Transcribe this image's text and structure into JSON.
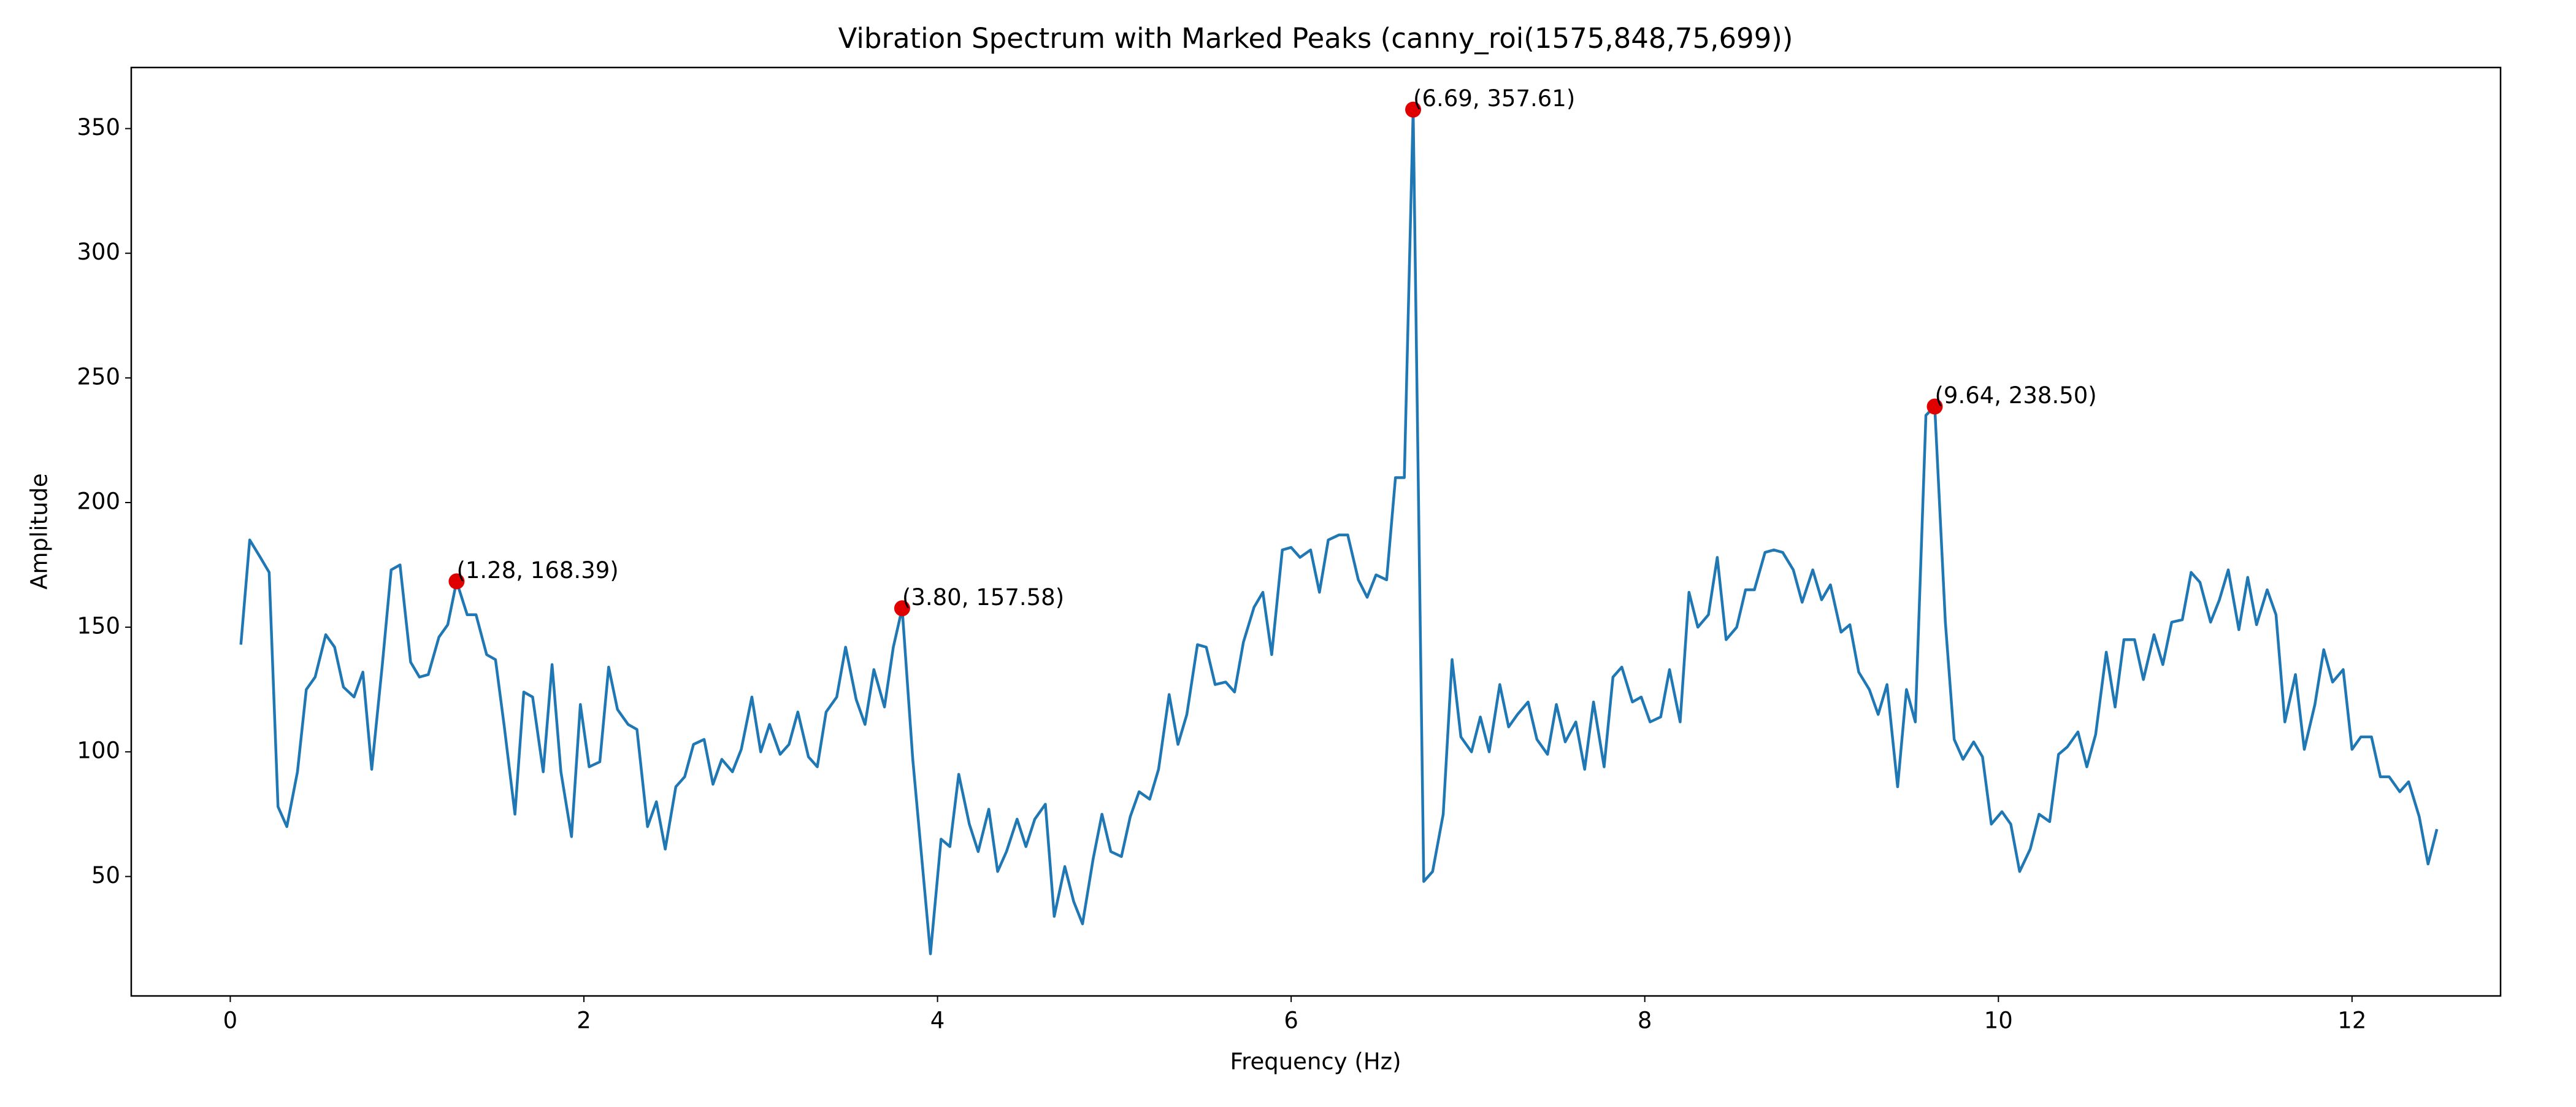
{
  "chart_data": {
    "type": "line",
    "title": "Vibration Spectrum with Marked Peaks (canny_roi(1575,848,75,699))",
    "xlabel": "Frequency (Hz)",
    "ylabel": "Amplitude",
    "xlim": [
      -0.56,
      12.84
    ],
    "ylim": [
      2.1,
      374.5
    ],
    "xticks": [
      0,
      2,
      4,
      6,
      8,
      10,
      12
    ],
    "yticks": [
      50,
      100,
      150,
      200,
      250,
      300,
      350
    ],
    "x": [
      0.06,
      0.11,
      0.17,
      0.22,
      0.27,
      0.32,
      0.38,
      0.43,
      0.48,
      0.54,
      0.59,
      0.64,
      0.7,
      0.75,
      0.8,
      0.86,
      0.91,
      0.96,
      1.02,
      1.07,
      1.12,
      1.18,
      1.23,
      1.28,
      1.34,
      1.39,
      1.45,
      1.5,
      1.55,
      1.61,
      1.66,
      1.71,
      1.77,
      1.82,
      1.87,
      1.93,
      1.98,
      2.03,
      2.09,
      2.14,
      2.19,
      2.25,
      2.3,
      2.36,
      2.41,
      2.46,
      2.52,
      2.57,
      2.62,
      2.68,
      2.73,
      2.78,
      2.84,
      2.89,
      2.95,
      3.0,
      3.05,
      3.11,
      3.16,
      3.21,
      3.27,
      3.32,
      3.37,
      3.43,
      3.48,
      3.54,
      3.59,
      3.64,
      3.7,
      3.75,
      3.8,
      3.86,
      3.91,
      3.96,
      4.02,
      4.07,
      4.12,
      4.18,
      4.23,
      4.29,
      4.34,
      4.39,
      4.45,
      4.5,
      4.55,
      4.61,
      4.66,
      4.72,
      4.77,
      4.82,
      4.88,
      4.93,
      4.98,
      5.04,
      5.09,
      5.14,
      5.2,
      5.25,
      5.31,
      5.36,
      5.41,
      5.47,
      5.52,
      5.57,
      5.63,
      5.68,
      5.73,
      5.79,
      5.84,
      5.89,
      5.95,
      6.0,
      6.05,
      6.11,
      6.16,
      6.21,
      6.27,
      6.32,
      6.38,
      6.43,
      6.48,
      6.54,
      6.59,
      6.64,
      6.69,
      6.75,
      6.8,
      6.86,
      6.91,
      6.96,
      7.02,
      7.07,
      7.12,
      7.18,
      7.23,
      7.28,
      7.34,
      7.39,
      7.45,
      7.5,
      7.55,
      7.61,
      7.66,
      7.71,
      7.77,
      7.82,
      7.87,
      7.93,
      7.98,
      8.03,
      8.09,
      8.14,
      8.2,
      8.25,
      8.3,
      8.36,
      8.41,
      8.46,
      8.52,
      8.57,
      8.62,
      8.68,
      8.73,
      8.78,
      8.84,
      8.89,
      8.95,
      9.0,
      9.05,
      9.11,
      9.16,
      9.21,
      9.27,
      9.32,
      9.37,
      9.43,
      9.48,
      9.53,
      9.59,
      9.64,
      9.7,
      9.75,
      9.8,
      9.86,
      9.91,
      9.96,
      10.02,
      10.07,
      10.12,
      10.18,
      10.23,
      10.29,
      10.34,
      10.39,
      10.45,
      10.5,
      10.55,
      10.61,
      10.66,
      10.71,
      10.77,
      10.82,
      10.88,
      10.93,
      10.98,
      11.04,
      11.09,
      11.14,
      11.2,
      11.25,
      11.3,
      11.36,
      11.41,
      11.46,
      11.52,
      11.57,
      11.62,
      11.68,
      11.73,
      11.79,
      11.84,
      11.89,
      11.95,
      12.0,
      12.05,
      12.11,
      12.16,
      12.21,
      12.27,
      12.32,
      12.38,
      12.43,
      12.48
    ],
    "series": [
      {
        "color": "#1f77b4",
        "values": [
          143,
          185,
          178,
          172,
          78,
          70,
          92,
          125,
          130,
          147,
          142,
          126,
          122,
          132,
          93,
          135,
          173,
          175,
          136,
          130,
          131,
          146,
          151,
          168.39,
          155,
          155,
          139,
          137,
          110,
          75,
          124,
          122,
          92,
          135,
          92,
          66,
          119,
          94,
          96,
          134,
          117,
          111,
          109,
          70,
          80,
          61,
          86,
          90,
          103,
          105,
          87,
          97,
          92,
          101,
          122,
          100,
          111,
          99,
          103,
          116,
          98,
          94,
          116,
          122,
          142,
          121,
          111,
          133,
          118,
          142,
          157.58,
          97,
          58,
          19,
          65,
          62,
          91,
          71,
          60,
          77,
          52,
          60,
          73,
          62,
          73,
          79,
          34,
          54,
          40,
          31,
          57,
          75,
          60,
          58,
          74,
          84,
          81,
          93,
          123,
          103,
          115,
          143,
          142,
          127,
          128,
          124,
          144,
          158,
          164,
          139,
          181,
          182,
          178,
          181,
          164,
          185,
          187,
          187,
          169,
          162,
          171,
          169,
          210,
          210,
          357.61,
          48,
          52,
          75,
          137,
          106,
          100,
          114,
          100,
          127,
          110,
          115,
          120,
          105,
          99,
          119,
          104,
          112,
          93,
          120,
          94,
          130,
          134,
          120,
          122,
          112,
          114,
          133,
          112,
          164,
          150,
          155,
          178,
          145,
          150,
          165,
          165,
          180,
          181,
          180,
          173,
          160,
          173,
          161,
          167,
          148,
          151,
          132,
          125,
          115,
          127,
          86,
          125,
          112,
          235,
          238.5,
          152,
          105,
          97,
          104,
          98,
          71,
          76,
          71,
          52,
          61,
          75,
          72,
          99,
          102,
          108,
          94,
          107,
          140,
          118,
          145,
          145,
          129,
          147,
          135,
          152,
          153,
          172,
          168,
          152,
          161,
          173,
          149,
          170,
          151,
          165,
          155,
          112,
          131,
          101,
          119,
          141,
          128,
          133,
          101,
          106,
          106,
          90,
          90,
          84,
          88,
          74,
          55,
          69
        ]
      }
    ],
    "peaks": {
      "color": "#e00000",
      "x": [
        1.28,
        3.8,
        6.69,
        9.64
      ],
      "y": [
        168.39,
        157.58,
        357.61,
        238.5
      ],
      "labels": [
        "(1.28, 168.39)",
        "(3.80, 157.58)",
        "(6.69, 357.61)",
        "(9.64, 238.50)"
      ]
    }
  }
}
